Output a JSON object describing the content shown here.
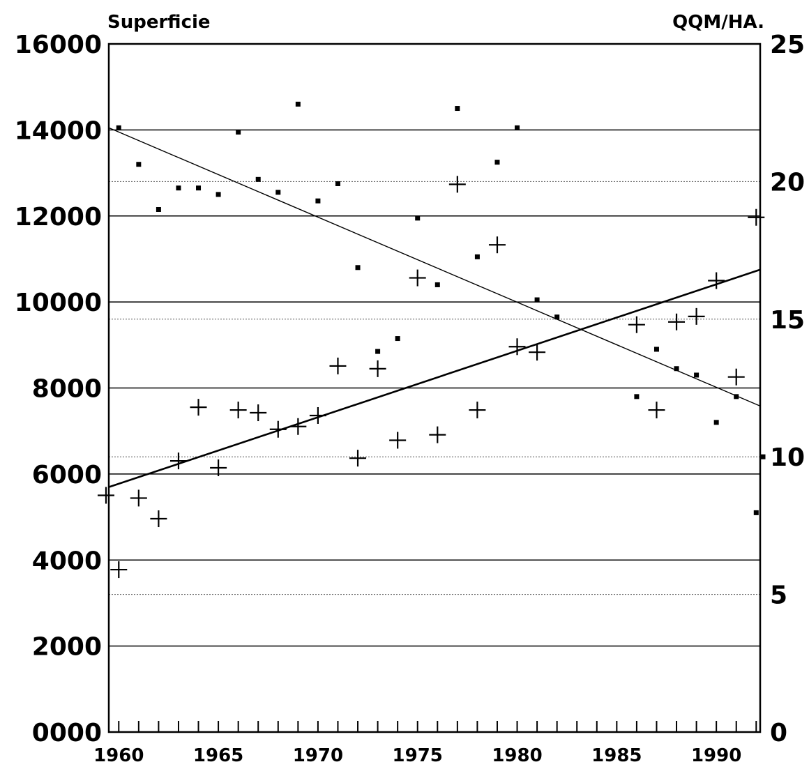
{
  "chart_data": {
    "type": "scatter",
    "title": "",
    "left_axis": {
      "label": "Superficie",
      "range": [
        0,
        16000
      ],
      "ticks": [
        0,
        2000,
        4000,
        6000,
        8000,
        10000,
        12000,
        14000,
        16000
      ],
      "tick_labels": [
        "0000",
        "2000",
        "4000",
        "6000",
        "8000",
        "10000",
        "12000",
        "14000",
        "16000"
      ]
    },
    "right_axis": {
      "label": "QQM/HA.",
      "range": [
        0,
        25
      ],
      "ticks": [
        0,
        5,
        10,
        15,
        20,
        25
      ],
      "tick_labels": [
        "0",
        "5",
        "10",
        "15",
        "20",
        "25"
      ]
    },
    "x_axis": {
      "range": [
        1959.5,
        1992.2
      ],
      "ticks": [
        1960,
        1965,
        1970,
        1975,
        1980,
        1985,
        1990
      ],
      "tick_labels": [
        "1960",
        "1965",
        "1970",
        "1975",
        "1980",
        "1985",
        "1990"
      ],
      "minor_tick_step": 1
    },
    "grid": "horizontal",
    "series": [
      {
        "marker": "dot",
        "axis": "left",
        "points": [
          [
            1960,
            14050
          ],
          [
            1961,
            13200
          ],
          [
            1962,
            12150
          ],
          [
            1963,
            12650
          ],
          [
            1964,
            12650
          ],
          [
            1965,
            12500
          ],
          [
            1966,
            13950
          ],
          [
            1967,
            12850
          ],
          [
            1968,
            12550
          ],
          [
            1969,
            14600
          ],
          [
            1970,
            12350
          ],
          [
            1971,
            12750
          ],
          [
            1972,
            10800
          ],
          [
            1973,
            8850
          ],
          [
            1974,
            9150
          ],
          [
            1975,
            11950
          ],
          [
            1976,
            10400
          ],
          [
            1977,
            14500
          ],
          [
            1978,
            11050
          ],
          [
            1979,
            13250
          ],
          [
            1980,
            14050
          ],
          [
            1981,
            10050
          ],
          [
            1982,
            9650
          ],
          [
            1986,
            7800
          ],
          [
            1987,
            8900
          ],
          [
            1988,
            8450
          ],
          [
            1989,
            8300
          ],
          [
            1990,
            7200
          ],
          [
            1991,
            7800
          ],
          [
            1992,
            5100
          ],
          [
            1993,
            6400
          ]
        ],
        "trend": [
          [
            1959.5,
            14050
          ],
          [
            1992.2,
            7580
          ]
        ]
      },
      {
        "marker": "cross",
        "axis": "right",
        "points": [
          [
            1959,
            8.6
          ],
          [
            1960,
            5.9
          ],
          [
            1961,
            8.5
          ],
          [
            1962,
            7.75
          ],
          [
            1963,
            9.85
          ],
          [
            1964,
            11.8
          ],
          [
            1965,
            9.6
          ],
          [
            1966,
            11.7
          ],
          [
            1967,
            11.6
          ],
          [
            1968,
            11.0
          ],
          [
            1969,
            11.1
          ],
          [
            1970,
            11.5
          ],
          [
            1971,
            13.3
          ],
          [
            1972,
            9.95
          ],
          [
            1973,
            13.2
          ],
          [
            1974,
            10.6
          ],
          [
            1975,
            16.5
          ],
          [
            1976,
            10.8
          ],
          [
            1977,
            19.9
          ],
          [
            1978,
            11.7
          ],
          [
            1979,
            17.7
          ],
          [
            1980,
            14.0
          ],
          [
            1981,
            13.8
          ],
          [
            1986,
            14.8
          ],
          [
            1987,
            11.7
          ],
          [
            1988,
            14.9
          ],
          [
            1989,
            15.1
          ],
          [
            1990,
            16.4
          ],
          [
            1991,
            12.9
          ],
          [
            1992,
            18.7
          ]
        ],
        "trend": [
          [
            1959.5,
            8.9
          ],
          [
            1992.2,
            16.8
          ]
        ]
      }
    ]
  }
}
